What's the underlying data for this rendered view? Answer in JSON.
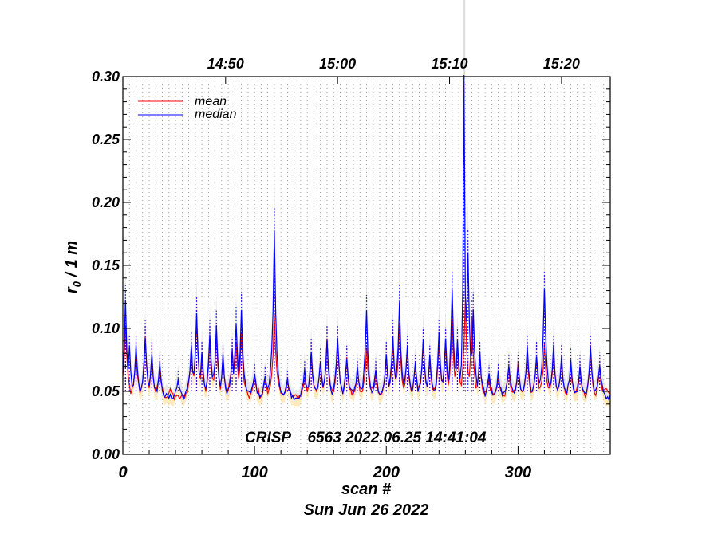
{
  "chart_data": {
    "type": "line",
    "xlabel": "scan #",
    "xlabel_date": "Sun Jun 26 2022",
    "ylabel_r": "r",
    "ylabel_sub": "0",
    "ylabel_rest": " / 1 m",
    "xlim": [
      0,
      370
    ],
    "ylim": [
      0.0,
      0.3
    ],
    "x_ticks": [
      0,
      100,
      200,
      300
    ],
    "x_tick_labels": [
      "0",
      "100",
      "200",
      "300"
    ],
    "y_ticks": [
      0.0,
      0.05,
      0.1,
      0.15,
      0.2,
      0.25,
      0.3
    ],
    "y_tick_labels": [
      "0.00",
      "0.05",
      "0.10",
      "0.15",
      "0.20",
      "0.25",
      "0.30"
    ],
    "top_axis_ticks_x": [
      78,
      163,
      248,
      333
    ],
    "top_axis_labels": [
      "14:50",
      "15:00",
      "15:10",
      "15:20"
    ],
    "annotation": "CRISP    6563 2022.06.25 14:41:04",
    "legend_position": "top-left",
    "grid": true,
    "series": [
      {
        "name": "mean",
        "color": "#ff0000",
        "peaks": [
          [
            2,
            0.102
          ],
          [
            10,
            0.08
          ],
          [
            17,
            0.092
          ],
          [
            22,
            0.078
          ],
          [
            28,
            0.068
          ],
          [
            52,
            0.085
          ],
          [
            56,
            0.107
          ],
          [
            60,
            0.078
          ],
          [
            66,
            0.092
          ],
          [
            71,
            0.094
          ],
          [
            76,
            0.076
          ],
          [
            83,
            0.083
          ],
          [
            86,
            0.09
          ],
          [
            90,
            0.094
          ],
          [
            100,
            0.062
          ],
          [
            108,
            0.06
          ],
          [
            115,
            0.112
          ],
          [
            125,
            0.058
          ],
          [
            138,
            0.062
          ],
          [
            143,
            0.08
          ],
          [
            150,
            0.072
          ],
          [
            155,
            0.09
          ],
          [
            163,
            0.09
          ],
          [
            170,
            0.075
          ],
          [
            178,
            0.067
          ],
          [
            185,
            0.085
          ],
          [
            192,
            0.065
          ],
          [
            200,
            0.078
          ],
          [
            205,
            0.088
          ],
          [
            210,
            0.102
          ],
          [
            216,
            0.082
          ],
          [
            222,
            0.07
          ],
          [
            228,
            0.088
          ],
          [
            233,
            0.075
          ],
          [
            240,
            0.088
          ],
          [
            245,
            0.086
          ],
          [
            250,
            0.106
          ],
          [
            254,
            0.084
          ],
          [
            260,
            0.12
          ],
          [
            265,
            0.11
          ],
          [
            271,
            0.078
          ],
          [
            278,
            0.06
          ],
          [
            285,
            0.062
          ],
          [
            293,
            0.068
          ],
          [
            300,
            0.07
          ],
          [
            307,
            0.08
          ],
          [
            314,
            0.078
          ],
          [
            320,
            0.085
          ],
          [
            327,
            0.08
          ],
          [
            333,
            0.075
          ],
          [
            340,
            0.072
          ],
          [
            347,
            0.068
          ],
          [
            355,
            0.08
          ],
          [
            362,
            0.07
          ]
        ]
      },
      {
        "name": "median",
        "color": "#0000ff",
        "peaks": [
          [
            2,
            0.12
          ],
          [
            5,
            0.085
          ],
          [
            10,
            0.085
          ],
          [
            17,
            0.095
          ],
          [
            22,
            0.08
          ],
          [
            28,
            0.07
          ],
          [
            42,
            0.06
          ],
          [
            52,
            0.087
          ],
          [
            56,
            0.112
          ],
          [
            60,
            0.08
          ],
          [
            66,
            0.095
          ],
          [
            71,
            0.102
          ],
          [
            76,
            0.078
          ],
          [
            83,
            0.082
          ],
          [
            86,
            0.105
          ],
          [
            90,
            0.115
          ],
          [
            100,
            0.065
          ],
          [
            108,
            0.062
          ],
          [
            115,
            0.175
          ],
          [
            125,
            0.06
          ],
          [
            138,
            0.066
          ],
          [
            143,
            0.082
          ],
          [
            150,
            0.075
          ],
          [
            155,
            0.092
          ],
          [
            163,
            0.092
          ],
          [
            170,
            0.077
          ],
          [
            178,
            0.068
          ],
          [
            185,
            0.113
          ],
          [
            192,
            0.068
          ],
          [
            200,
            0.08
          ],
          [
            205,
            0.095
          ],
          [
            210,
            0.12
          ],
          [
            216,
            0.085
          ],
          [
            222,
            0.07
          ],
          [
            228,
            0.09
          ],
          [
            233,
            0.077
          ],
          [
            240,
            0.095
          ],
          [
            245,
            0.09
          ],
          [
            250,
            0.13
          ],
          [
            254,
            0.09
          ],
          [
            259,
            0.3
          ],
          [
            262,
            0.16
          ],
          [
            266,
            0.115
          ],
          [
            271,
            0.08
          ],
          [
            278,
            0.063
          ],
          [
            285,
            0.065
          ],
          [
            293,
            0.07
          ],
          [
            300,
            0.072
          ],
          [
            307,
            0.085
          ],
          [
            314,
            0.08
          ],
          [
            320,
            0.13
          ],
          [
            327,
            0.085
          ],
          [
            333,
            0.078
          ],
          [
            340,
            0.075
          ],
          [
            347,
            0.07
          ],
          [
            355,
            0.085
          ],
          [
            362,
            0.072
          ]
        ]
      }
    ]
  }
}
